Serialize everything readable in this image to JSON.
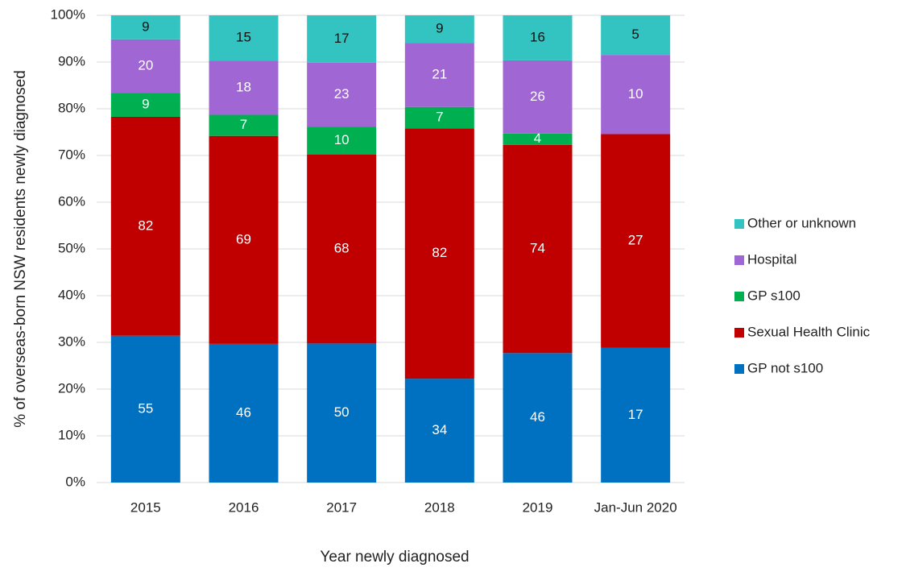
{
  "chart_data": {
    "type": "bar",
    "stacking": "percent",
    "x_label": "Year newly diagnosed",
    "y_label": "% of overseas-born NSW residents newly diagnosed",
    "categories": [
      "2015",
      "2016",
      "2017",
      "2018",
      "2019",
      "Jan-Jun 2020"
    ],
    "series": [
      {
        "name": "GP not s100",
        "color": "#0070c0",
        "values": [
          55,
          46,
          50,
          34,
          46,
          17
        ]
      },
      {
        "name": "Sexual Health Clinic",
        "color": "#c00000",
        "values": [
          82,
          69,
          68,
          82,
          74,
          27
        ]
      },
      {
        "name": "GP s100",
        "color": "#00b050",
        "values": [
          9,
          7,
          10,
          7,
          4,
          null
        ]
      },
      {
        "name": "Hospital",
        "color": "#a066d3",
        "values": [
          20,
          18,
          23,
          21,
          26,
          10
        ]
      },
      {
        "name": "Other or unknown",
        "color": "#33c3c0",
        "values": [
          9,
          15,
          17,
          9,
          16,
          5
        ]
      }
    ],
    "ylim": [
      0,
      100
    ],
    "yticks": [
      {
        "value": 0,
        "label": "0%"
      },
      {
        "value": 10,
        "label": "10%"
      },
      {
        "value": 20,
        "label": "20%"
      },
      {
        "value": 30,
        "label": "30%"
      },
      {
        "value": 40,
        "label": "40%"
      },
      {
        "value": 50,
        "label": "50%"
      },
      {
        "value": 60,
        "label": "60%"
      },
      {
        "value": 70,
        "label": "70%"
      },
      {
        "value": 80,
        "label": "80%"
      },
      {
        "value": 90,
        "label": "90%"
      },
      {
        "value": 100,
        "label": "100%"
      }
    ],
    "grid": true,
    "legend": "right"
  }
}
